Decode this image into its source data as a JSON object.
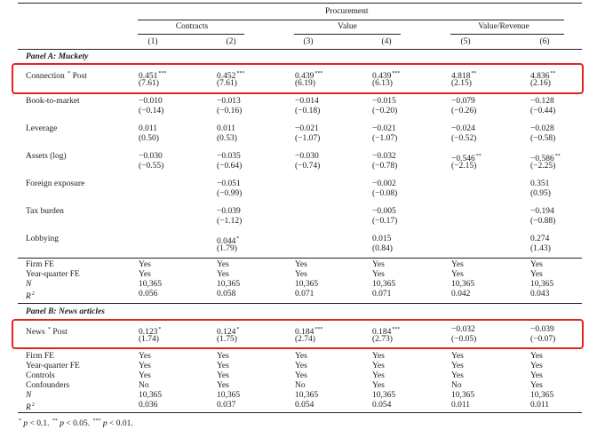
{
  "header": {
    "top": "Procurement",
    "groups": [
      "Contracts",
      "Value",
      "Value/Revenue"
    ],
    "cols": [
      "(1)",
      "(2)",
      "(3)",
      "(4)",
      "(5)",
      "(6)"
    ]
  },
  "panelA": {
    "title": "Panel A: Muckety",
    "rows": [
      {
        "label": "Connection * Post",
        "coef": [
          "0.451***",
          "0.452***",
          "0.439***",
          "0.439***",
          "4.818**",
          "4.836**"
        ],
        "t": [
          "(7.61)",
          "(7.61)",
          "(6.19)",
          "(6.13)",
          "(2.15)",
          "(2.16)"
        ]
      },
      {
        "label": "Book-to-market",
        "coef": [
          "−0.010",
          "−0.013",
          "−0.014",
          "−0.015",
          "−0.079",
          "−0.128"
        ],
        "t": [
          "(−0.14)",
          "(−0.16)",
          "(−0.18)",
          "(−0.20)",
          "(−0.26)",
          "(−0.44)"
        ]
      },
      {
        "label": "Leverage",
        "coef": [
          "0.011",
          "0.011",
          "−0.021",
          "−0.021",
          "−0.024",
          "−0.028"
        ],
        "t": [
          "(0.50)",
          "(0.53)",
          "(−1.07)",
          "(−1.07)",
          "(−0.52)",
          "(−0.58)"
        ]
      },
      {
        "label": "Assets (log)",
        "coef": [
          "−0.030",
          "−0.035",
          "−0.030",
          "−0.032",
          "−0.546**",
          "−0.586**"
        ],
        "t": [
          "(−0.55)",
          "(−0.64)",
          "(−0.74)",
          "(−0.78)",
          "(−2.15)",
          "(−2.25)"
        ]
      },
      {
        "label": "Foreign exposure",
        "coef": [
          "",
          "−0.051",
          "",
          "−0.002",
          "",
          "0.351"
        ],
        "t": [
          "",
          "(−0.99)",
          "",
          "(−0.08)",
          "",
          "(0.95)"
        ]
      },
      {
        "label": "Tax burden",
        "coef": [
          "",
          "−0.039",
          "",
          "−0.005",
          "",
          "−0.194"
        ],
        "t": [
          "",
          "(−1.12)",
          "",
          "(−0.17)",
          "",
          "(−0.88)"
        ]
      },
      {
        "label": "Lobbying",
        "coef": [
          "",
          "0.044*",
          "",
          "0.015",
          "",
          "0.274"
        ],
        "t": [
          "",
          "(1.79)",
          "",
          "(0.84)",
          "",
          "(1.43)"
        ]
      }
    ],
    "stats": [
      {
        "label": "Firm FE",
        "vals": [
          "Yes",
          "Yes",
          "Yes",
          "Yes",
          "Yes",
          "Yes"
        ]
      },
      {
        "label": "Year-quarter FE",
        "vals": [
          "Yes",
          "Yes",
          "Yes",
          "Yes",
          "Yes",
          "Yes"
        ]
      },
      {
        "label": "N",
        "vals": [
          "10,365",
          "10,365",
          "10,365",
          "10,365",
          "10,365",
          "10,365"
        ]
      },
      {
        "label": "R2",
        "vals": [
          "0.056",
          "0.058",
          "0.071",
          "0.071",
          "0.042",
          "0.043"
        ]
      }
    ]
  },
  "panelB": {
    "title": "Panel B: News articles",
    "rows": [
      {
        "label": "News * Post",
        "coef": [
          "0.123*",
          "0.124*",
          "0.184***",
          "0.184***",
          "−0.032",
          "−0.039"
        ],
        "t": [
          "(1.74)",
          "(1.75)",
          "(2.74)",
          "(2.73)",
          "(−0.05)",
          "(−0.07)"
        ]
      }
    ],
    "stats": [
      {
        "label": "Firm FE",
        "vals": [
          "Yes",
          "Yes",
          "Yes",
          "Yes",
          "Yes",
          "Yes"
        ]
      },
      {
        "label": "Year-quarter FE",
        "vals": [
          "Yes",
          "Yes",
          "Yes",
          "Yes",
          "Yes",
          "Yes"
        ]
      },
      {
        "label": "Controls",
        "vals": [
          "Yes",
          "Yes",
          "Yes",
          "Yes",
          "Yes",
          "Yes"
        ]
      },
      {
        "label": "Confounders",
        "vals": [
          "No",
          "Yes",
          "No",
          "Yes",
          "No",
          "Yes"
        ]
      },
      {
        "label": "N",
        "vals": [
          "10,365",
          "10,365",
          "10,365",
          "10,365",
          "10,365",
          "10,365"
        ]
      },
      {
        "label": "R2",
        "vals": [
          "0.036",
          "0.037",
          "0.054",
          "0.054",
          "0.011",
          "0.011"
        ]
      }
    ]
  },
  "footnote": "* p < 0.1. ** p < 0.05. *** p < 0.01.",
  "colors": {
    "highlight": "#e8231b",
    "text": "#1a1a1a"
  }
}
